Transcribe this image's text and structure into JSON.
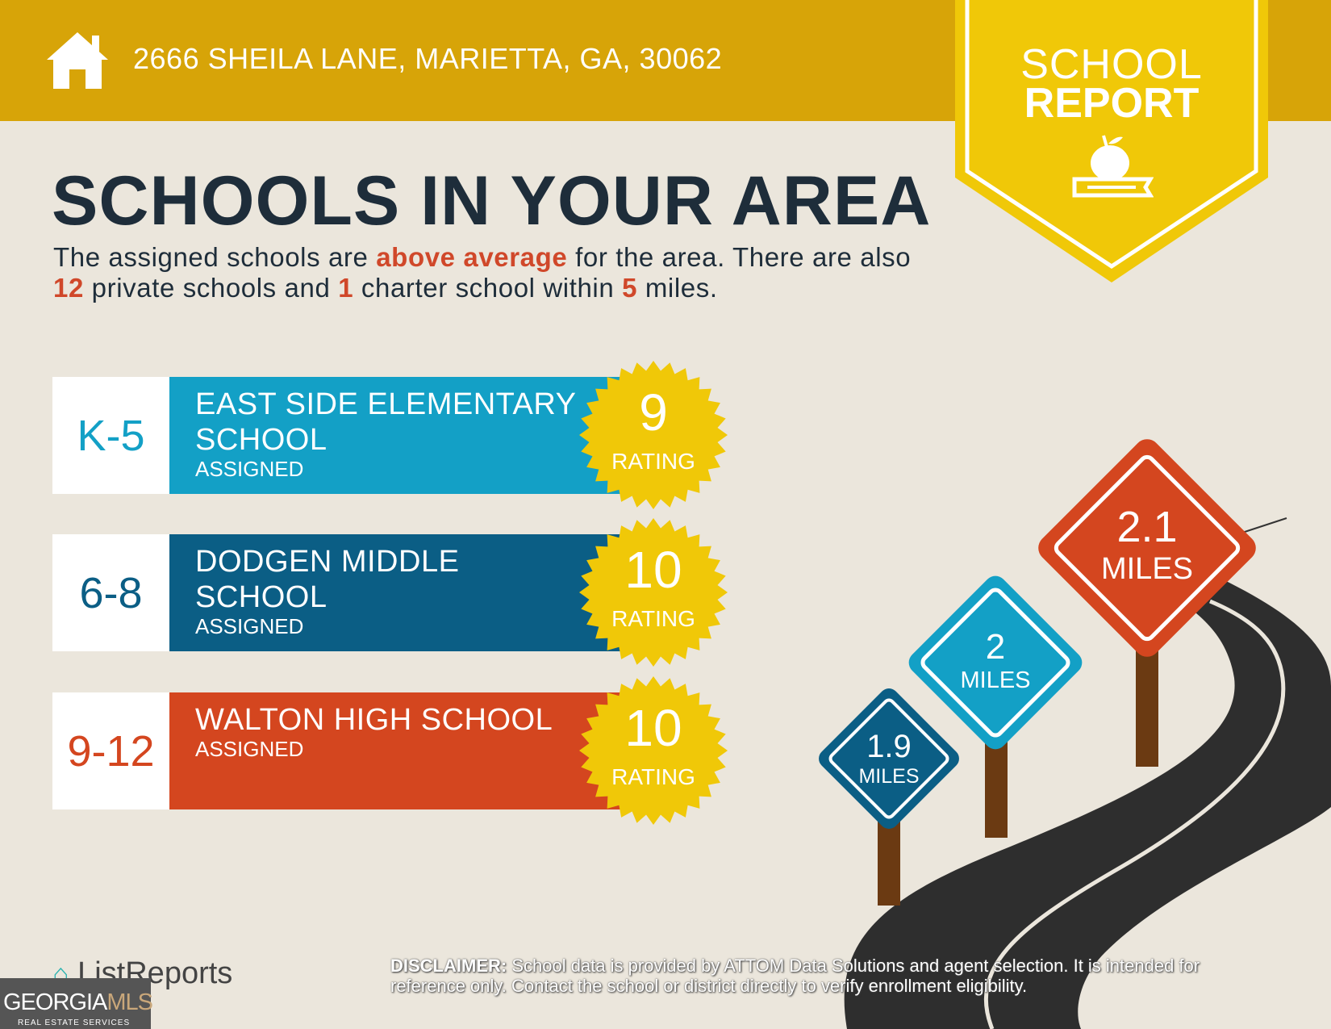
{
  "header": {
    "address": "2666 SHEILA LANE, MARIETTA, GA, 30062",
    "icon": "house-icon"
  },
  "badge": {
    "line1": "SCHOOL",
    "line2": "REPORT",
    "icon": "apple-on-book-icon"
  },
  "title": "SCHOOLS IN YOUR AREA",
  "summary": {
    "p1": "The assigned schools are ",
    "highlight": "above average",
    "p2": " for the area. There are also ",
    "private_count": "12",
    "p3": " private schools and ",
    "charter_count": "1",
    "p4": " charter school within ",
    "miles": "5",
    "p5": " miles."
  },
  "schools": [
    {
      "grades": "K-5",
      "name_l1": "EAST SIDE ELEMENTARY",
      "name_l2": "SCHOOL",
      "status": "ASSIGNED",
      "rating": "9",
      "rating_label": "RATING",
      "color": "#13a0c6",
      "distance": "1.9",
      "distance_unit": "MILES"
    },
    {
      "grades": "6-8",
      "name_l1": "DODGEN MIDDLE",
      "name_l2": "SCHOOL",
      "status": "ASSIGNED",
      "rating": "10",
      "rating_label": "RATING",
      "color": "#0b5e85",
      "distance": "2",
      "distance_unit": "MILES"
    },
    {
      "grades": "9-12",
      "name_l1": "WALTON HIGH SCHOOL",
      "name_l2": "",
      "status": "ASSIGNED",
      "rating": "10",
      "rating_label": "RATING",
      "color": "#d4461f",
      "distance": "2.1",
      "distance_unit": "MILES"
    }
  ],
  "footer": {
    "brand": "ListReports",
    "disclaimer_label": "DISCLAIMER:",
    "disclaimer": " School data is provided by ATTOM Data Solutions and agent selection. It is intended for reference only. Contact the school or district directly to verify enrollment eligibility.",
    "mls_a": "GEORGIA",
    "mls_b": "MLS",
    "mls_sub": "REAL ESTATE SERVICES"
  },
  "colors": {
    "header": "#d7a408",
    "badge": "#f0c808",
    "seal": "#f0c808",
    "background": "#ebe6dc"
  }
}
